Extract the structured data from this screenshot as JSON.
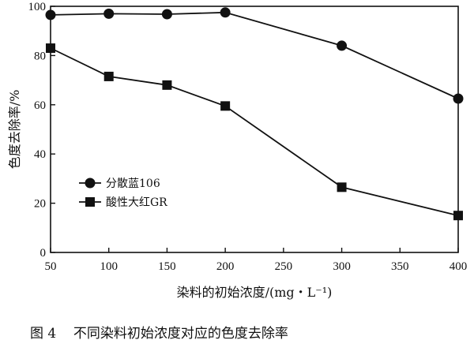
{
  "chart_data": {
    "type": "line",
    "title": "",
    "xlabel": "染料的初始浓度/(mg・L⁻¹)",
    "ylabel": "色度去除率/%",
    "xlim": [
      50,
      400
    ],
    "ylim": [
      0,
      100
    ],
    "xticks": [
      50,
      100,
      150,
      200,
      250,
      300,
      350,
      400
    ],
    "yticks": [
      0,
      20,
      40,
      60,
      80,
      100
    ],
    "grid": false,
    "legend_position": "left-middle",
    "series": [
      {
        "name": "分散蓝106",
        "marker": "circle",
        "color": "#111111",
        "x": [
          50,
          100,
          150,
          200,
          300,
          400
        ],
        "y": [
          96.5,
          97,
          96.8,
          97.5,
          84,
          62.5
        ]
      },
      {
        "name": "酸性大红GR",
        "marker": "square",
        "color": "#111111",
        "x": [
          50,
          100,
          150,
          200,
          300,
          400
        ],
        "y": [
          83,
          71.5,
          68,
          59.5,
          26.5,
          15
        ]
      }
    ]
  },
  "caption": {
    "figure_number": "图 4",
    "text": "不同染料初始浓度对应的色度去除率"
  }
}
